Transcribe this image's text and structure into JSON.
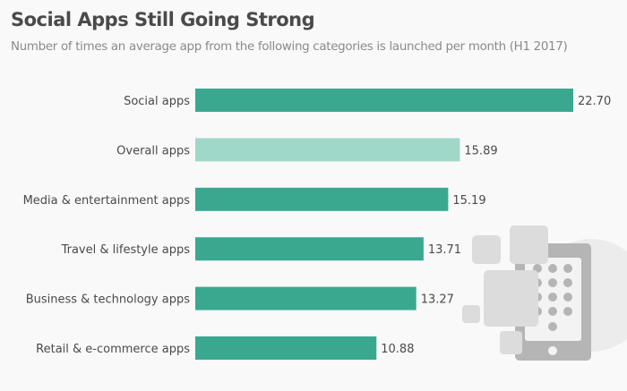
{
  "chart_data": {
    "type": "bar",
    "orientation": "horizontal",
    "title": "Social Apps Still Going Strong",
    "subtitle": "Number of times an average app from the following categories is launched per month (H1 2017)",
    "categories": [
      "Social apps",
      "Overall apps",
      "Media & entertainment apps",
      "Travel & lifestyle apps",
      "Business & technology apps",
      "Retail & e-commerce apps"
    ],
    "values": [
      22.7,
      15.89,
      15.19,
      13.71,
      13.27,
      10.88
    ],
    "value_labels": [
      "22.70",
      "15.89",
      "15.19",
      "13.71",
      "13.27",
      "10.88"
    ],
    "xlim": [
      0,
      22.7
    ],
    "grid": false,
    "colors": {
      "default": "#3aa88f",
      "highlight": "#9fd8c9"
    },
    "highlight_index": 1,
    "decoration": "smartphone-app-grid-icon"
  }
}
